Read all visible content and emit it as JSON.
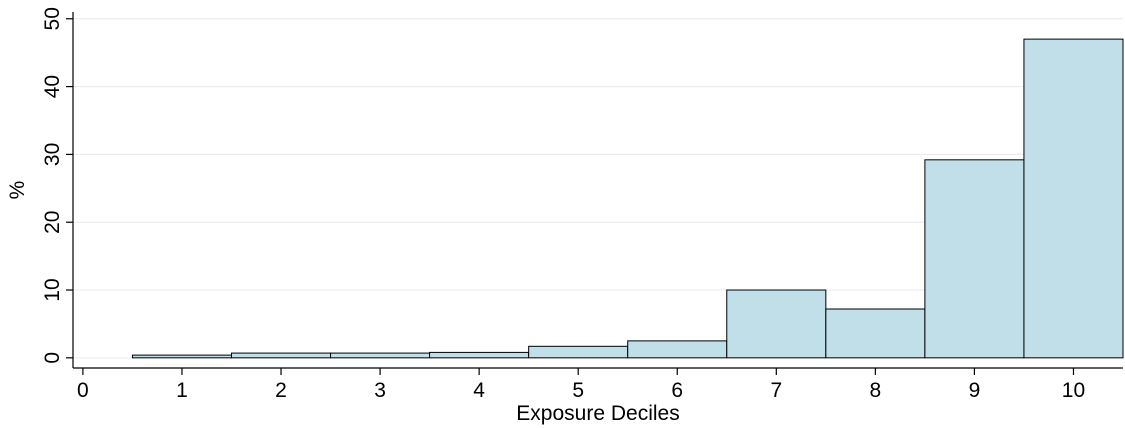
{
  "chart_data": {
    "type": "bar",
    "title": "",
    "xlabel": "Exposure Deciles",
    "ylabel": "%",
    "categories": [
      1,
      2,
      3,
      4,
      5,
      6,
      7,
      8,
      9,
      10
    ],
    "values": [
      0.4,
      0.7,
      0.7,
      0.8,
      1.7,
      2.5,
      10.0,
      7.2,
      29.2,
      47.0
    ],
    "x_ticks": [
      0,
      1,
      2,
      3,
      4,
      5,
      6,
      7,
      8,
      9,
      10
    ],
    "y_ticks": [
      0,
      10,
      20,
      30,
      40,
      50
    ],
    "xlim": [
      -0.1,
      10.5
    ],
    "ylim": [
      -1.5,
      51
    ],
    "grid": true,
    "bar_color": "#c0dfe8",
    "bar_edge_color": "#000000",
    "grid_color": "#e6eaec"
  }
}
